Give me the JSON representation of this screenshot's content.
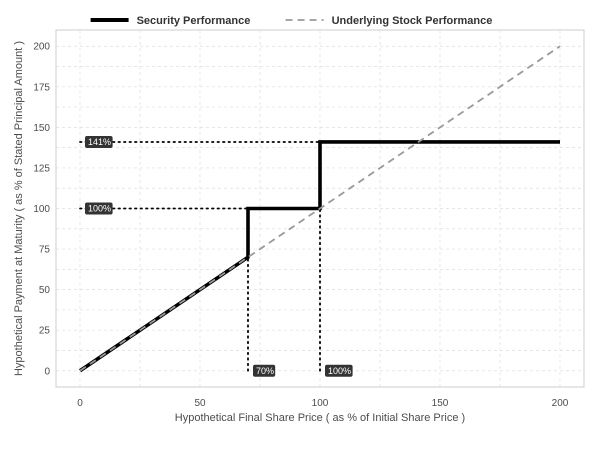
{
  "chart_data": {
    "type": "line",
    "title": "",
    "xlabel": "Hypothetical Final Share Price ( as % of Initial Share Price )",
    "ylabel": "Hypothetical Payment at Maturity ( as % of Stated Principal Amount )",
    "xlim": [
      -10,
      210
    ],
    "ylim": [
      -10,
      210
    ],
    "x_ticks": [
      0,
      50,
      100,
      150,
      200
    ],
    "y_ticks": [
      0,
      25,
      50,
      75,
      100,
      125,
      150,
      175,
      200
    ],
    "grid": true,
    "legend_position": "top",
    "series": [
      {
        "name": "Security Performance",
        "style": "solid",
        "color": "#000000",
        "points": [
          [
            0,
            0
          ],
          [
            70,
            70
          ],
          [
            70,
            100
          ],
          [
            100,
            100
          ],
          [
            100,
            141
          ],
          [
            200,
            141
          ]
        ]
      },
      {
        "name": "Underlying Stock Performance",
        "style": "dashed",
        "color": "#999999",
        "points": [
          [
            0,
            0
          ],
          [
            200,
            200
          ]
        ]
      }
    ],
    "reference_lines": [
      {
        "orientation": "horizontal",
        "y": 141,
        "x_from": 0,
        "x_to": 100
      },
      {
        "orientation": "horizontal",
        "y": 100,
        "x_from": 0,
        "x_to": 70
      },
      {
        "orientation": "vertical",
        "x": 70,
        "y_from": 0,
        "y_to": 100
      },
      {
        "orientation": "vertical",
        "x": 100,
        "y_from": 0,
        "y_to": 100
      }
    ],
    "annotations": [
      {
        "text": "141%",
        "x": 0,
        "y": 141,
        "axis": "y"
      },
      {
        "text": "100%",
        "x": 0,
        "y": 100,
        "axis": "y"
      },
      {
        "text": "70%",
        "x": 70,
        "y": 0,
        "axis": "x"
      },
      {
        "text": "100%",
        "x": 100,
        "y": 0,
        "axis": "x"
      }
    ]
  }
}
